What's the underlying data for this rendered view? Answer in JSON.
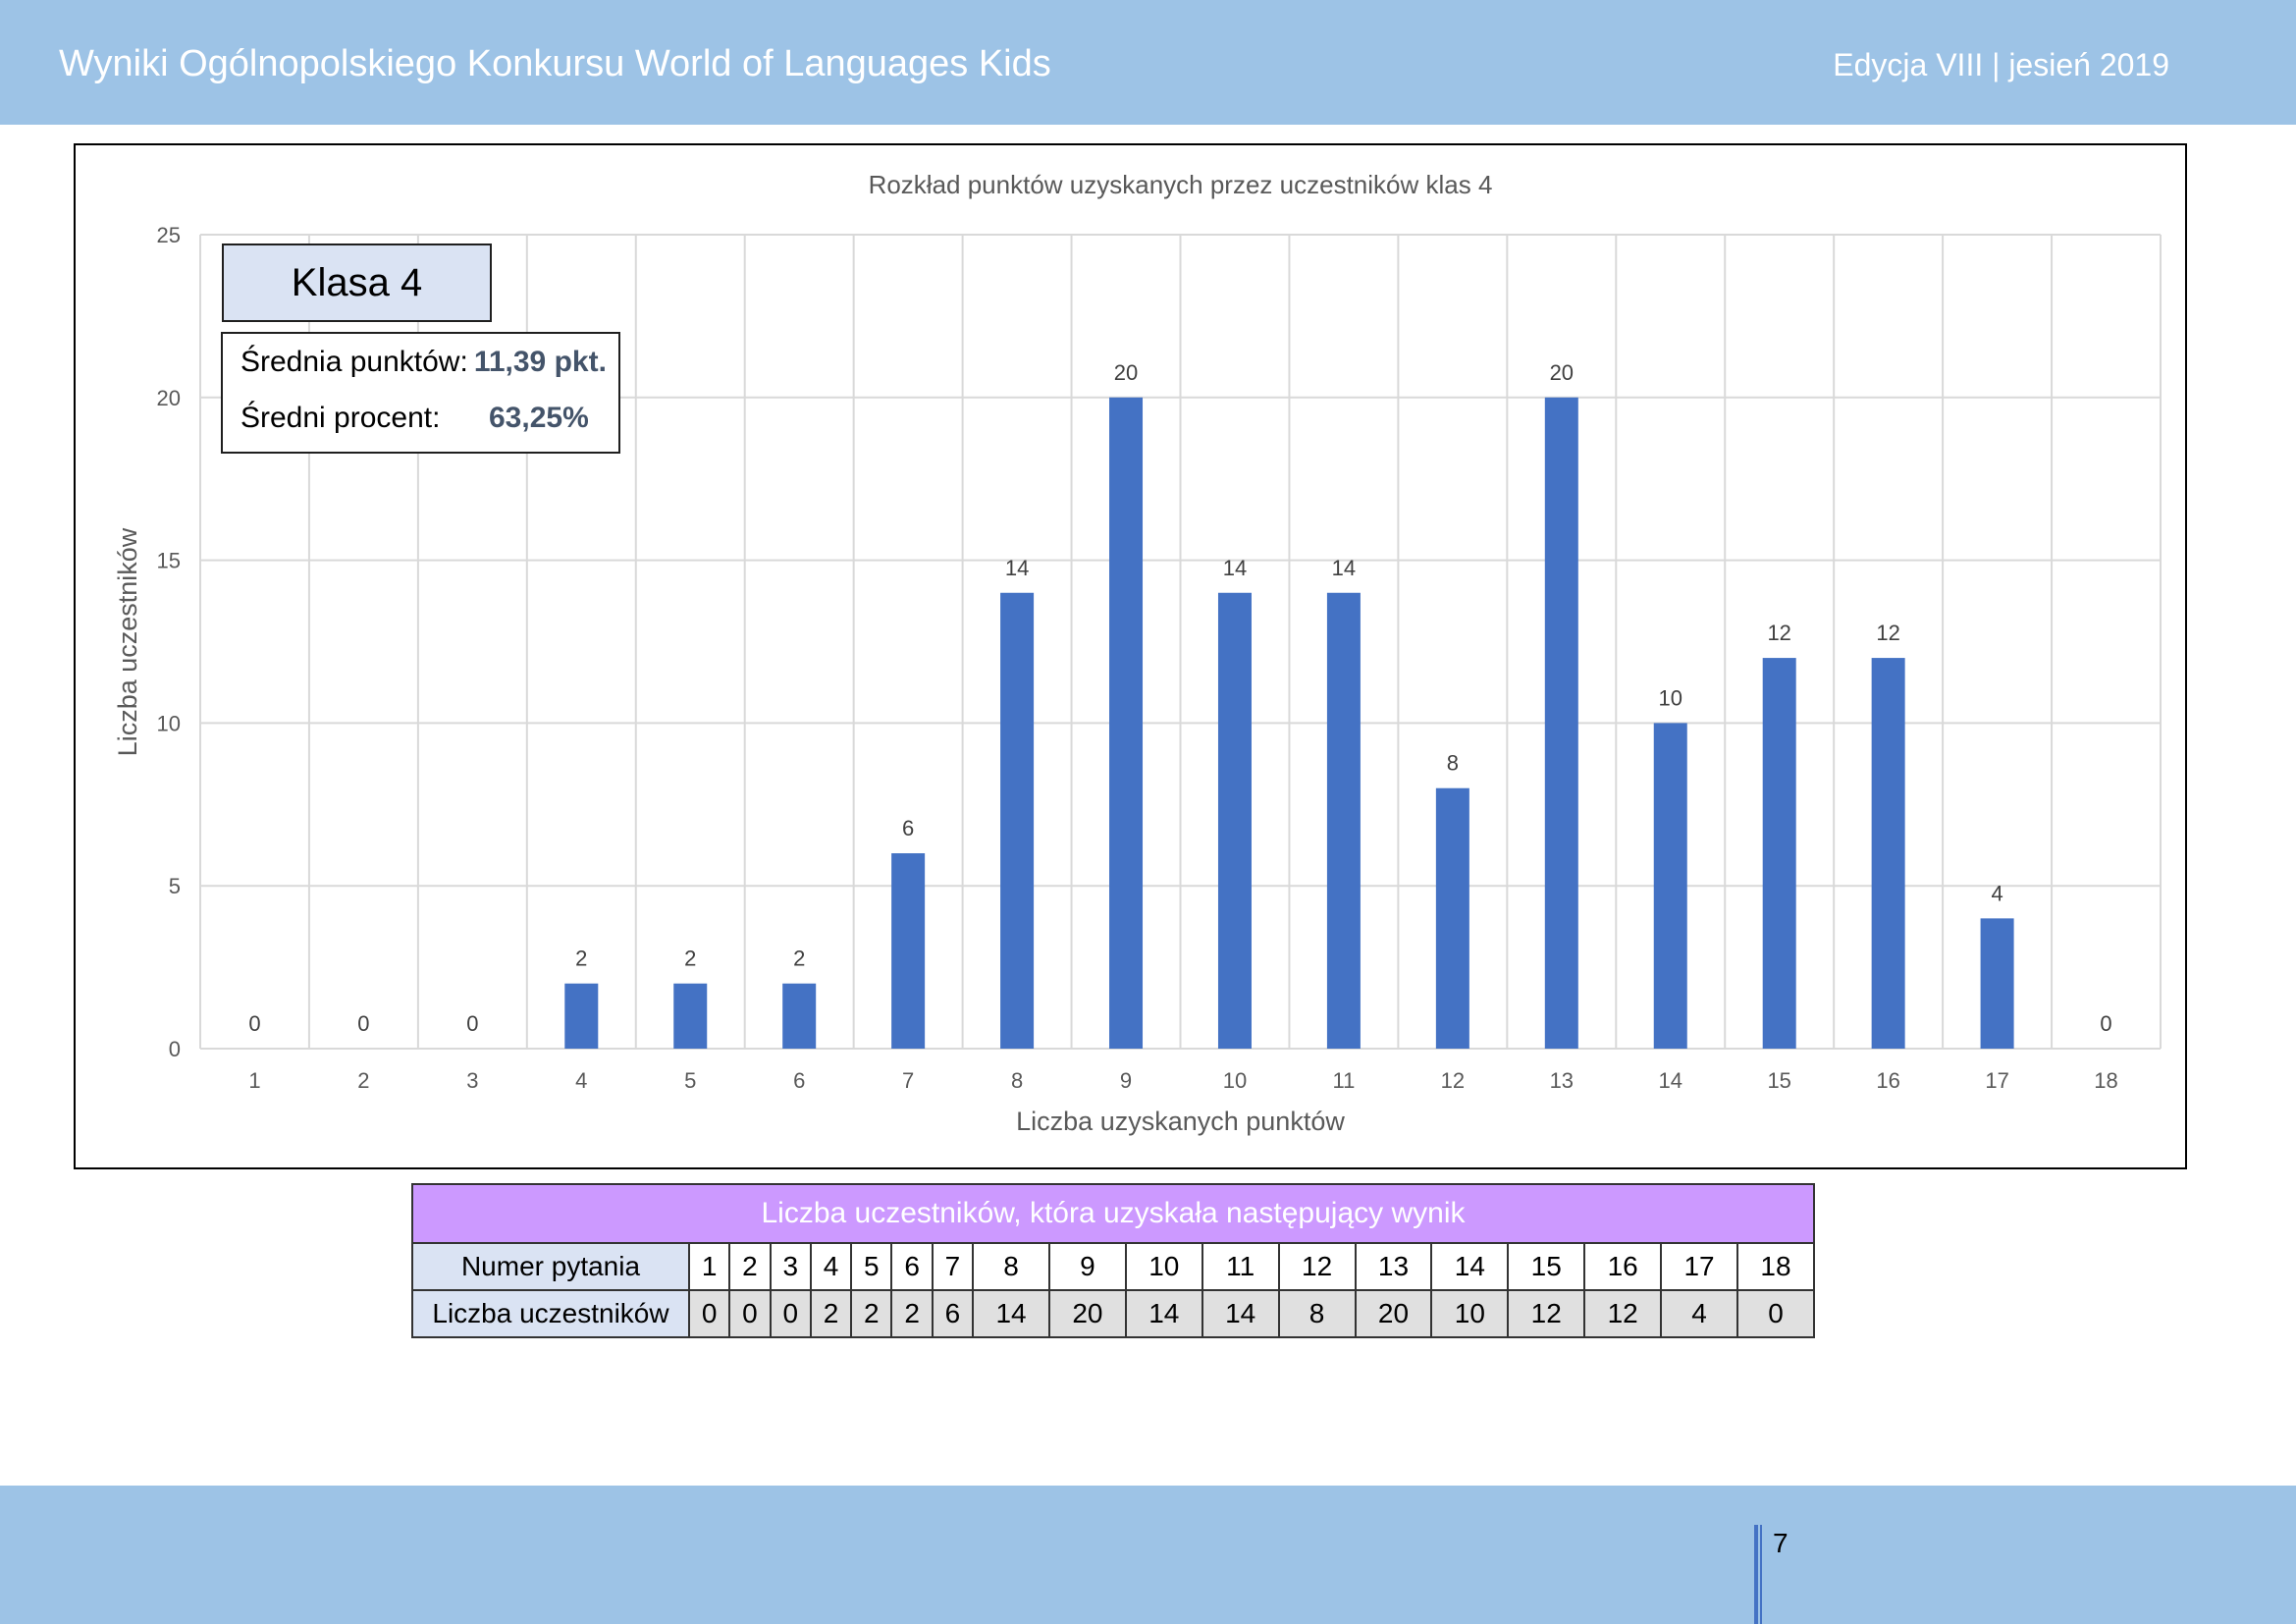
{
  "header": {
    "title": "Wyniki Ogólnopolskiego Konkursu World of Languages Kids",
    "edition": "Edycja VIII  |   jesień 2019"
  },
  "footer": {
    "page_number": "7"
  },
  "info": {
    "class_label": "Klasa 4",
    "avg_points_label": "Średnia punktów:",
    "avg_points_value": "11,39 pkt.",
    "avg_percent_label": "Średni procent:",
    "avg_percent_value": "63,25%"
  },
  "table": {
    "caption": "Liczba uczestników, która uzyskała następujący wynik",
    "row1_label": "Numer pytania",
    "row2_label": "Liczba uczestników",
    "questions": [
      "1",
      "2",
      "3",
      "4",
      "5",
      "6",
      "7",
      "8",
      "9",
      "10",
      "11",
      "12",
      "13",
      "14",
      "15",
      "16",
      "17",
      "18"
    ],
    "counts": [
      "0",
      "0",
      "0",
      "2",
      "2",
      "2",
      "6",
      "14",
      "20",
      "14",
      "14",
      "8",
      "20",
      "10",
      "12",
      "12",
      "4",
      "0"
    ]
  },
  "colors": {
    "bar": "#4472c4",
    "band": "#9dc3e6",
    "table_caption": "#cc99ff"
  },
  "chart_data": {
    "type": "bar",
    "title": "Rozkład punktów uzyskanych przez uczestników klas 4",
    "xlabel": "Liczba uzyskanych punktów",
    "ylabel": "Liczba uczestników",
    "categories": [
      "1",
      "2",
      "3",
      "4",
      "5",
      "6",
      "7",
      "8",
      "9",
      "10",
      "11",
      "12",
      "13",
      "14",
      "15",
      "16",
      "17",
      "18"
    ],
    "values": [
      0,
      0,
      0,
      2,
      2,
      2,
      6,
      14,
      20,
      14,
      14,
      8,
      20,
      10,
      12,
      12,
      4,
      0
    ],
    "ylim": [
      0,
      25
    ],
    "yticks": [
      0,
      5,
      10,
      15,
      20,
      25
    ],
    "grid": true,
    "data_labels": true
  }
}
